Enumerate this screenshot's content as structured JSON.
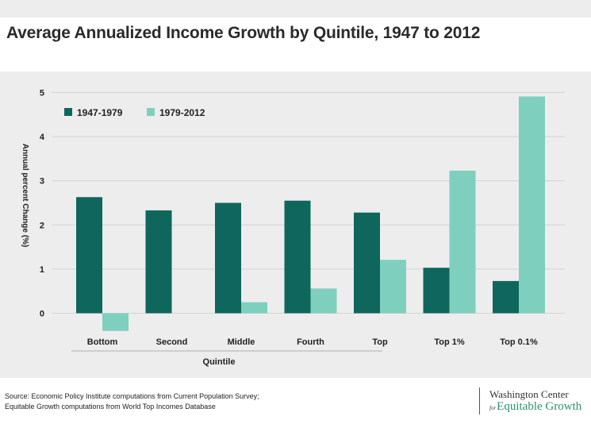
{
  "header": {
    "title": "Average Annualized Income Growth by Quintile, 1947 to 2012"
  },
  "chart_data": {
    "type": "bar",
    "title": "Average Annualized Income Growth by Quintile, 1947 to 2012",
    "xlabel": "Quintile",
    "ylabel": "Annual percent Change (%)",
    "ylim": [
      -0.4,
      5
    ],
    "yticks": [
      "0",
      "1",
      "2",
      "3",
      "4",
      "5"
    ],
    "categories": [
      "Bottom",
      "Second",
      "Middle",
      "Fourth",
      "Top",
      "Top 1%",
      "Top 0.1%"
    ],
    "series": [
      {
        "name": "1947-1979",
        "color": "#0f665c",
        "values": [
          2.63,
          2.33,
          2.5,
          2.55,
          2.28,
          1.03,
          0.73
        ]
      },
      {
        "name": "1979-2012",
        "color": "#7fcfbf",
        "values": [
          -0.4,
          0.0,
          0.25,
          0.56,
          1.21,
          3.23,
          4.91
        ]
      }
    ],
    "legend_position": "top-left",
    "grid": true
  },
  "footer": {
    "source_line1": "Source: Economic Policy Institute computations from Current Population Survey;",
    "source_line2": "Equitable Growth computations from World Top Incomes Database",
    "logo_line1": "Washington Center",
    "logo_for": "for",
    "logo_line2": "Equitable Growth"
  }
}
